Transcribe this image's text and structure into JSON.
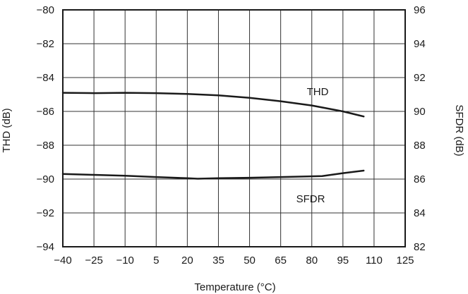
{
  "chart_data": {
    "type": "line",
    "title": "",
    "xlabel": "Temperature (°C)",
    "ylabel": "THD (dB)",
    "y2label": "SFDR (dB)",
    "xlim": [
      -40,
      125
    ],
    "ylim": [
      -94,
      -80
    ],
    "y2lim": [
      82,
      96
    ],
    "x_ticks": [
      "-40",
      "-25",
      "-10",
      "5",
      "20",
      "35",
      "50",
      "65",
      "80",
      "95",
      "110",
      "125"
    ],
    "x_tick_values": [
      -40,
      -25,
      -10,
      5,
      20,
      35,
      50,
      65,
      80,
      95,
      110,
      125
    ],
    "y_ticks": [
      "-80",
      "-82",
      "-84",
      "-86",
      "-88",
      "-90",
      "-92",
      "-94"
    ],
    "y_tick_values": [
      -80,
      -82,
      -84,
      -86,
      -88,
      -90,
      -92,
      -94
    ],
    "y2_ticks": [
      "96",
      "94",
      "92",
      "90",
      "88",
      "86",
      "84",
      "82"
    ],
    "y2_tick_values": [
      96,
      94,
      92,
      90,
      88,
      86,
      84,
      82
    ],
    "grid": true,
    "series": [
      {
        "name": "THD",
        "axis": "left",
        "x": [
          -40,
          -25,
          -10,
          5,
          20,
          35,
          50,
          65,
          80,
          95,
          105
        ],
        "y": [
          -84.9,
          -84.92,
          -84.9,
          -84.92,
          -84.97,
          -85.05,
          -85.2,
          -85.4,
          -85.65,
          -86.0,
          -86.3
        ]
      },
      {
        "name": "SFDR",
        "axis": "right",
        "x": [
          -40,
          -25,
          -10,
          5,
          20,
          25,
          35,
          50,
          65,
          85,
          95,
          105
        ],
        "y": [
          86.3,
          86.25,
          86.2,
          86.12,
          86.05,
          86.02,
          86.05,
          86.08,
          86.12,
          86.18,
          86.35,
          86.5
        ]
      }
    ]
  }
}
